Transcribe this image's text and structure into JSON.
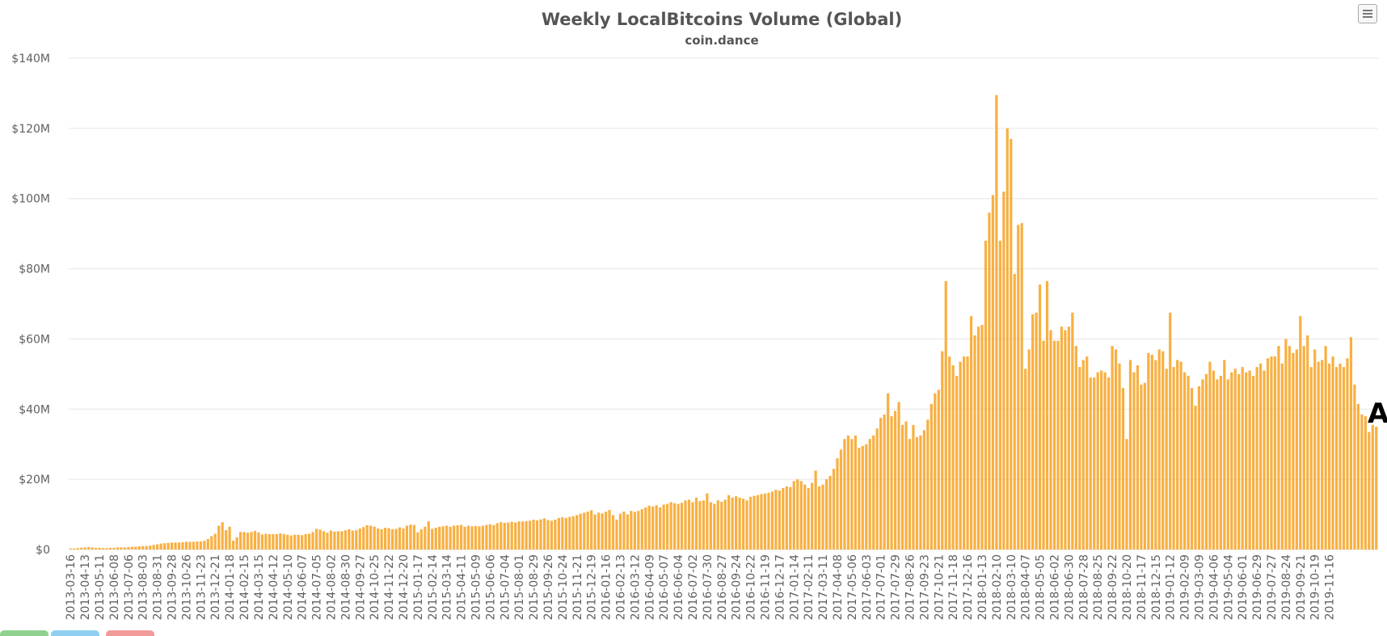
{
  "chart_data": {
    "type": "bar",
    "title": "Weekly LocalBitcoins Volume (Global)",
    "subtitle": "coin.dance",
    "xlabel": "",
    "ylabel": "",
    "ylim": [
      0,
      140
    ],
    "yticks": [
      0,
      20,
      40,
      60,
      80,
      100,
      120,
      140
    ],
    "ytick_labels": [
      "$0",
      "$20M",
      "$40M",
      "$60M",
      "$80M",
      "$100M",
      "$120M",
      "$140M"
    ],
    "grid": true,
    "bar_color": "#f7a932",
    "start_week": "2013-03-16",
    "xtick_labels": [
      "2013-03-16",
      "2013-04-13",
      "2013-05-11",
      "2013-06-08",
      "2013-07-06",
      "2013-08-03",
      "2013-08-31",
      "2013-09-28",
      "2013-10-26",
      "2013-11-23",
      "2013-12-21",
      "2014-01-18",
      "2014-02-15",
      "2014-03-15",
      "2014-04-12",
      "2014-05-10",
      "2014-06-07",
      "2014-07-05",
      "2014-08-02",
      "2014-08-30",
      "2014-09-27",
      "2014-10-25",
      "2014-11-22",
      "2014-12-20",
      "2015-01-17",
      "2015-02-14",
      "2015-03-14",
      "2015-04-11",
      "2015-05-09",
      "2015-06-06",
      "2015-07-04",
      "2015-08-01",
      "2015-08-29",
      "2015-09-26",
      "2015-10-24",
      "2015-11-21",
      "2015-12-19",
      "2016-01-16",
      "2016-02-13",
      "2016-03-12",
      "2016-04-09",
      "2016-05-07",
      "2016-06-04",
      "2016-07-02",
      "2016-07-30",
      "2016-08-27",
      "2016-09-24",
      "2016-10-22",
      "2016-11-19",
      "2016-12-17",
      "2017-01-14",
      "2017-02-11",
      "2017-03-11",
      "2017-04-08",
      "2017-05-06",
      "2017-06-03",
      "2017-07-01",
      "2017-07-29",
      "2017-08-26",
      "2017-09-23",
      "2017-10-21",
      "2017-11-18",
      "2017-12-16",
      "2018-01-13",
      "2018-02-10",
      "2018-03-10",
      "2018-04-07",
      "2018-05-05",
      "2018-06-02",
      "2018-06-30",
      "2018-07-28",
      "2018-08-25",
      "2018-09-22",
      "2018-10-20",
      "2018-11-17",
      "2018-12-15",
      "2019-01-12",
      "2019-02-09",
      "2019-03-09",
      "2019-04-06",
      "2019-05-04",
      "2019-06-01",
      "2019-06-29",
      "2019-07-27",
      "2019-08-24",
      "2019-09-21",
      "2019-10-19",
      "2019-11-16"
    ],
    "values": [
      0.3,
      0.3,
      0.4,
      0.5,
      0.6,
      0.7,
      0.6,
      0.5,
      0.5,
      0.4,
      0.4,
      0.5,
      0.5,
      0.6,
      0.6,
      0.6,
      0.7,
      0.8,
      0.8,
      0.9,
      1.0,
      1.0,
      1.1,
      1.3,
      1.5,
      1.7,
      1.8,
      1.9,
      2.0,
      2.0,
      2.0,
      2.1,
      2.2,
      2.2,
      2.2,
      2.3,
      2.3,
      2.5,
      3.0,
      3.8,
      4.5,
      6.8,
      7.8,
      5.5,
      6.5,
      2.5,
      3.5,
      5.0,
      5.0,
      4.8,
      5.0,
      5.3,
      4.9,
      4.3,
      4.5,
      4.4,
      4.4,
      4.4,
      4.6,
      4.4,
      4.2,
      4.0,
      4.2,
      4.2,
      4.1,
      4.4,
      4.5,
      5.0,
      5.9,
      5.7,
      5.2,
      4.8,
      5.4,
      5.1,
      5.2,
      5.2,
      5.5,
      5.8,
      5.4,
      5.5,
      6.0,
      6.4,
      6.9,
      6.8,
      6.5,
      6.0,
      5.8,
      6.2,
      6.1,
      5.8,
      5.9,
      6.3,
      6.0,
      6.8,
      7.1,
      7.0,
      4.9,
      5.8,
      6.5,
      8.0,
      5.9,
      6.2,
      6.5,
      6.6,
      6.8,
      6.5,
      6.8,
      6.9,
      7.0,
      6.5,
      6.8,
      6.6,
      6.7,
      6.6,
      6.8,
      7.0,
      7.2,
      7.0,
      7.5,
      7.8,
      7.6,
      7.7,
      7.9,
      7.7,
      8.0,
      8.0,
      8.1,
      8.2,
      8.5,
      8.3,
      8.6,
      8.9,
      8.4,
      8.2,
      8.5,
      9.0,
      9.2,
      9.0,
      9.3,
      9.5,
      9.8,
      10.2,
      10.5,
      10.8,
      11.2,
      10.0,
      10.5,
      10.3,
      10.8,
      11.3,
      9.8,
      8.5,
      10.2,
      10.8,
      10.0,
      11.0,
      10.7,
      11.0,
      11.5,
      12.0,
      12.5,
      12.3,
      12.6,
      12.0,
      12.8,
      13.0,
      13.5,
      13.2,
      13.0,
      13.3,
      14.0,
      14.2,
      13.5,
      14.8,
      13.8,
      14.0,
      16.0,
      13.5,
      13.0,
      14.0,
      13.6,
      14.2,
      15.5,
      14.8,
      15.2,
      14.8,
      14.5,
      14.0,
      15.0,
      15.3,
      15.5,
      15.8,
      16.0,
      16.2,
      16.5,
      17.0,
      16.8,
      17.5,
      18.0,
      17.8,
      19.5,
      20.0,
      19.5,
      18.5,
      17.5,
      19.0,
      22.5,
      18.0,
      18.5,
      20.0,
      21.0,
      23.0,
      26.0,
      28.5,
      31.5,
      32.5,
      31.5,
      32.5,
      29.0,
      29.5,
      30.0,
      31.5,
      32.5,
      34.5,
      37.5,
      38.5,
      44.5,
      38.0,
      39.5,
      42.0,
      35.5,
      36.5,
      31.5,
      35.5,
      32.0,
      32.5,
      34.0,
      37.0,
      41.5,
      44.5,
      45.5,
      56.5,
      76.5,
      55.0,
      52.5,
      49.5,
      53.5,
      55.0,
      55.0,
      66.5,
      61.0,
      63.5,
      64.0,
      88.0,
      96.0,
      101.0,
      129.5,
      88.0,
      102.0,
      120.0,
      117.0,
      78.5,
      92.5,
      93.0,
      51.5,
      57.0,
      67.0,
      67.5,
      75.5,
      59.5,
      76.5,
      62.5,
      59.5,
      59.5,
      63.5,
      62.5,
      63.5,
      67.5,
      58.0,
      52.0,
      54.0,
      55.0,
      49.0,
      49.0,
      50.5,
      51.0,
      50.5,
      49.0,
      58.0,
      57.0,
      53.0,
      46.0,
      31.5,
      54.0,
      50.5,
      52.5,
      47.0,
      47.5,
      56.0,
      55.5,
      54.0,
      57.0,
      56.5,
      51.5,
      67.5,
      52.0,
      54.0,
      53.5,
      50.5,
      49.5,
      46.0,
      41.0,
      46.5,
      48.5,
      50.0,
      53.5,
      51.0,
      48.5,
      49.5,
      54.0,
      48.5,
      50.5,
      51.5,
      50.0,
      52.0,
      50.5,
      51.0,
      49.5,
      52.0,
      53.0,
      51.0,
      54.5,
      55.0,
      55.0,
      58.0,
      53.0,
      60.0,
      58.0,
      56.0,
      57.0,
      66.5,
      58.0,
      61.0,
      52.0,
      57.0,
      53.5,
      54.0,
      58.0,
      53.0,
      55.0,
      52.0,
      53.0,
      52.0,
      54.5,
      60.5,
      47.0,
      41.5,
      38.5,
      38.0,
      33.5,
      35.5,
      35.0
    ],
    "last_value_label": "A"
  }
}
